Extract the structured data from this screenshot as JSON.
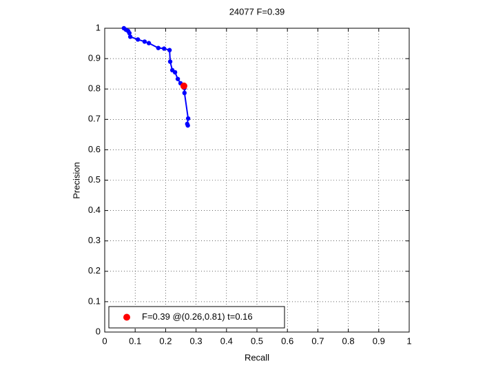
{
  "chart_data": {
    "type": "line",
    "title": "24077 F=0.39",
    "x_label": "Recall",
    "y_label": "Precision",
    "series": [
      {
        "color": "#0000ff",
        "x": [
          0.063,
          0.07,
          0.077,
          0.081,
          0.084,
          0.109,
          0.131,
          0.145,
          0.176,
          0.195,
          0.213,
          0.215,
          0.222,
          0.231,
          0.24,
          0.249,
          0.262,
          0.262,
          0.274,
          0.271,
          0.273
        ],
        "values": [
          1.0,
          0.995,
          0.991,
          0.984,
          0.972,
          0.963,
          0.956,
          0.951,
          0.935,
          0.933,
          0.928,
          0.89,
          0.862,
          0.855,
          0.833,
          0.819,
          0.803,
          0.787,
          0.703,
          0.685,
          0.68
        ],
        "style": "line-dots"
      },
      {
        "name": "F=0.39 @(0.26,0.81) t=0.16",
        "color": "#ff0000",
        "x": [
          0.26
        ],
        "values": [
          0.81
        ],
        "style": "point"
      }
    ],
    "xlim": [
      0,
      1
    ],
    "ylim": [
      0,
      1
    ],
    "xticks": [
      0,
      0.1,
      0.2,
      0.3,
      0.4,
      0.5,
      0.6,
      0.7,
      0.8,
      0.9,
      1
    ],
    "yticks": [
      0,
      0.1,
      0.2,
      0.3,
      0.4,
      0.5,
      0.6,
      0.7,
      0.8,
      0.9,
      1
    ],
    "grid": true,
    "legend_position": "lower-left"
  }
}
